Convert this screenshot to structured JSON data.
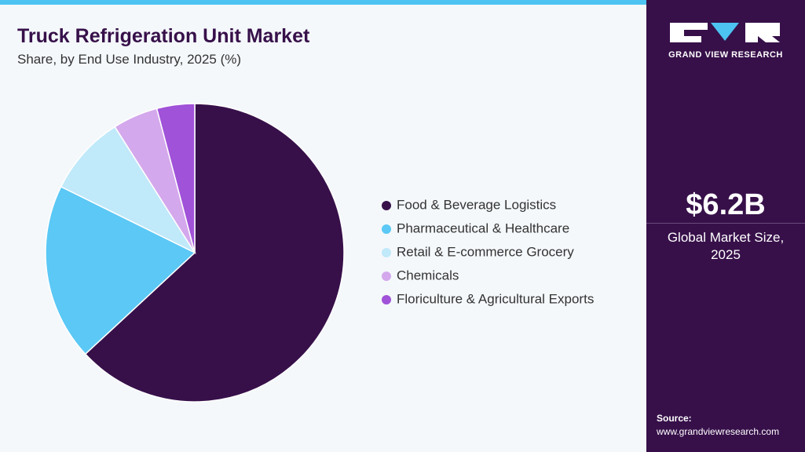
{
  "chart_data": {
    "type": "pie",
    "title": "Truck Refrigeration Unit Market",
    "subtitle": "Share, by End Use Industry, 2025 (%)",
    "categories": [
      "Food & Beverage Logistics",
      "Pharmaceutical & Healthcare",
      "Retail & E-commerce Grocery",
      "Chemicals",
      "Floriculture & Agricultural Exports"
    ],
    "values": [
      63.1,
      19.2,
      8.7,
      4.9,
      4.1
    ],
    "colors": [
      "#37104a",
      "#5bc8f5",
      "#c0e9fa",
      "#d4a8ec",
      "#a052d8"
    ]
  },
  "sidebar": {
    "logo_text": "GRAND VIEW RESEARCH",
    "market_size": "$6.2B",
    "market_size_label": "Global Market Size, 2025",
    "source_label": "Source:",
    "source_url": "www.grandviewresearch.com"
  }
}
